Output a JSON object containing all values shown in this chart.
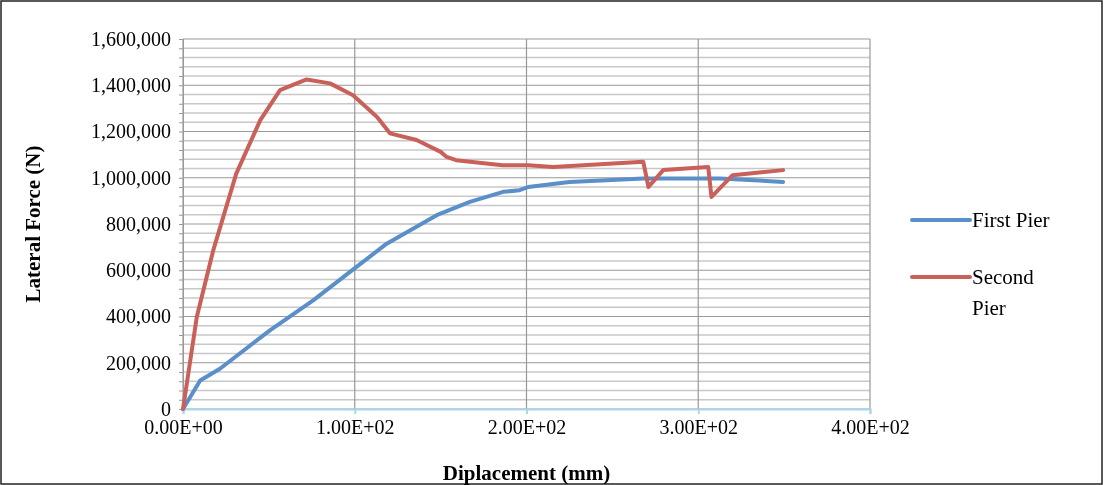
{
  "chart_data": {
    "type": "line",
    "xlabel": "Diplacement (mm)",
    "ylabel": "Lateral Force (N)",
    "xlim": [
      0,
      400
    ],
    "xticks": [
      {
        "value": 0,
        "label": "0.00E+00"
      },
      {
        "value": 100,
        "label": "1.00E+02"
      },
      {
        "value": 200,
        "label": "2.00E+02"
      },
      {
        "value": 300,
        "label": "3.00E+02"
      },
      {
        "value": 400,
        "label": "4.00E+02"
      }
    ],
    "ylim": [
      0,
      1600000
    ],
    "yticks": [
      0,
      {
        "value": 40000,
        "label": null
      },
      {
        "value": 80000,
        "label": null
      },
      {
        "value": 120000,
        "label": null
      },
      {
        "value": 160000,
        "label": null
      },
      {
        "value": 200000,
        "label": "200,000"
      },
      {
        "value": 240000,
        "label": null
      },
      {
        "value": 280000,
        "label": null
      },
      {
        "value": 320000,
        "label": null
      },
      {
        "value": 360000,
        "label": null
      },
      {
        "value": 400000,
        "label": "400,000"
      },
      {
        "value": 440000,
        "label": null
      },
      {
        "value": 480000,
        "label": null
      },
      {
        "value": 520000,
        "label": null
      },
      {
        "value": 560000,
        "label": null
      },
      {
        "value": 600000,
        "label": "600,000"
      },
      {
        "value": 640000,
        "label": null
      },
      {
        "value": 680000,
        "label": null
      },
      {
        "value": 720000,
        "label": null
      },
      {
        "value": 760000,
        "label": null
      },
      {
        "value": 800000,
        "label": "800,000"
      },
      {
        "value": 840000,
        "label": null
      },
      {
        "value": 880000,
        "label": null
      },
      {
        "value": 920000,
        "label": null
      },
      {
        "value": 960000,
        "label": null
      },
      {
        "value": 1000000,
        "label": "1,000,000"
      },
      {
        "value": 1040000,
        "label": null
      },
      {
        "value": 1080000,
        "label": null
      },
      {
        "value": 1120000,
        "label": null
      },
      {
        "value": 1160000,
        "label": null
      },
      {
        "value": 1200000,
        "label": "1,200,000"
      },
      {
        "value": 1240000,
        "label": null
      },
      {
        "value": 1280000,
        "label": null
      },
      {
        "value": 1320000,
        "label": null
      },
      {
        "value": 1360000,
        "label": null
      },
      {
        "value": 1400000,
        "label": "1,400,000"
      },
      {
        "value": 1440000,
        "label": null
      },
      {
        "value": 1480000,
        "label": null
      },
      {
        "value": 1520000,
        "label": null
      },
      {
        "value": 1560000,
        "label": null
      },
      {
        "value": 1600000,
        "label": "1,600,000"
      }
    ],
    "grid": true,
    "legend": "right",
    "marker": "none",
    "line_style": "solid",
    "series": [
      {
        "name": "First Pier",
        "color": "#5b8fc9",
        "x": [
          0,
          10,
          21.5,
          50.6,
          75.8,
          99.7,
          118.6,
          147.7,
          167,
          186.4,
          196,
          201,
          225,
          268,
          312.6,
          349.4
        ],
        "values": [
          0,
          123000,
          174000,
          340000,
          470000,
          607000,
          715000,
          838000,
          896000,
          939000,
          946000,
          960000,
          982000,
          997000,
          997000,
          982000
        ]
      },
      {
        "name": "Second Pier",
        "color": "#c9605a",
        "x": [
          0,
          8,
          17.6,
          31,
          45,
          56.5,
          72,
          85.6,
          99,
          113,
          120.5,
          136,
          150,
          153.5,
          159,
          186,
          201,
          215.5,
          268,
          271,
          279.6,
          305.8,
          307.7,
          320,
          349.4
        ],
        "values": [
          0,
          397000,
          686000,
          1018000,
          1249000,
          1379000,
          1425000,
          1408000,
          1357000,
          1263000,
          1192000,
          1163000,
          1112000,
          1090000,
          1076000,
          1054000,
          1054000,
          1047000,
          1069000,
          960000,
          1033000,
          1047000,
          917000,
          1011000,
          1033000
        ]
      }
    ]
  }
}
